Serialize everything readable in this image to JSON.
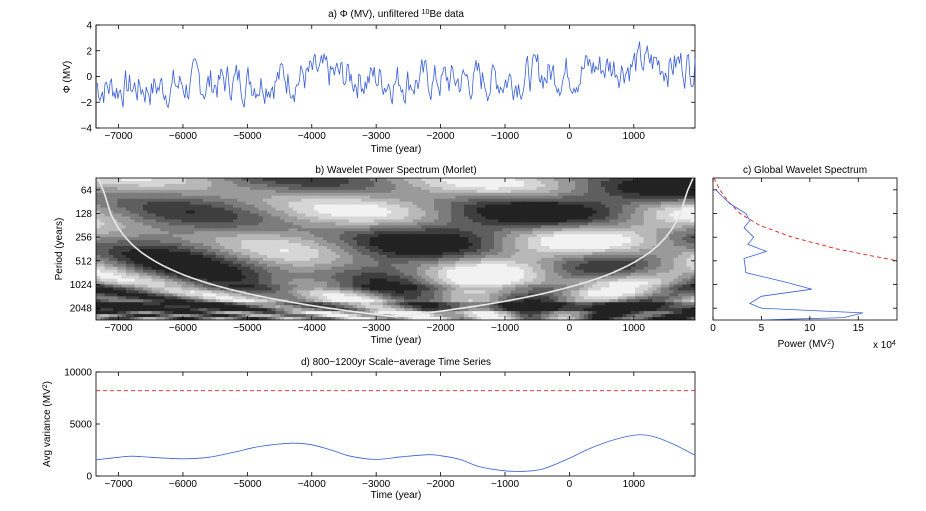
{
  "colors": {
    "series": "#3a5fd6",
    "significance": "#d62020",
    "axis": "#000000",
    "coi": "#e8e8e8"
  },
  "chart_data": [
    {
      "id": "a",
      "type": "line",
      "title_prefix": "a) Φ (MV), unfiltered ",
      "title_sup": "10",
      "title_suffix": "Be data",
      "xlabel": "Time (year)",
      "ylabel": "Φ (MV)",
      "xlim": [
        -7350,
        1950
      ],
      "ylim": [
        -4,
        4
      ],
      "xticks": [
        -7000,
        -6000,
        -5000,
        -4000,
        -3000,
        -2000,
        -1000,
        0,
        1000
      ],
      "yticks": [
        -4,
        -2,
        0,
        2,
        4
      ],
      "sample_step_years": 20,
      "grid": false
    },
    {
      "id": "b",
      "type": "heatmap",
      "title": "b) Wavelet Power Spectrum (Morlet)",
      "xlabel": "Time (year)",
      "ylabel": "Period (years)",
      "xlim": [
        -7350,
        1950
      ],
      "ylim_log2": [
        5.5,
        11.5
      ],
      "xticks": [
        -7000,
        -6000,
        -5000,
        -4000,
        -3000,
        -2000,
        -1000,
        0,
        1000
      ],
      "yticks": [
        64,
        128,
        256,
        512,
        1024,
        2048
      ],
      "grayscale_levels": 7,
      "cone_of_influence": true
    },
    {
      "id": "c",
      "type": "line",
      "title": "c) Global Wavelet Spectrum",
      "xlabel_main": "Power (MV",
      "xlabel_sup": "2",
      "xlabel_end": ")",
      "xscale_base": "x 10",
      "xscale_exp": "4",
      "xlim": [
        0,
        19
      ],
      "xticks": [
        0,
        5,
        10,
        15
      ],
      "period_log2": [
        6.0,
        6.3,
        6.6,
        7.0,
        7.3,
        7.6,
        8.0,
        8.3,
        8.6,
        8.9,
        9.2,
        9.5,
        9.9,
        10.2,
        10.5,
        10.8,
        11.0,
        11.2,
        11.4,
        11.5
      ],
      "power": [
        0.3,
        1.0,
        1.8,
        3.4,
        3.8,
        3.2,
        4.2,
        3.6,
        5.5,
        3.2,
        3.3,
        3.4,
        7.5,
        10.2,
        5.0,
        3.8,
        5.0,
        15.5,
        13.5,
        4.8
      ],
      "significance_log2": [
        5.5,
        6.0,
        6.5,
        7.0,
        7.5,
        8.0,
        8.5,
        9.0
      ],
      "significance_power": [
        0.1,
        0.7,
        1.6,
        2.8,
        4.8,
        8.2,
        12.8,
        19.0
      ]
    },
    {
      "id": "d",
      "type": "line",
      "title": "d) 800−1200yr Scale−average Time Series",
      "xlabel": "Time (year)",
      "ylabel_main": "Avg variance (MV",
      "ylabel_sup": "2",
      "ylabel_end": ")",
      "xlim": [
        -7350,
        1950
      ],
      "ylim": [
        0,
        10000
      ],
      "xticks": [
        -7000,
        -6000,
        -5000,
        -4000,
        -3000,
        -2000,
        -1000,
        0,
        1000
      ],
      "yticks": [
        0,
        5000,
        10000
      ],
      "x": [
        -7350,
        -7000,
        -6800,
        -6500,
        -6000,
        -5600,
        -5200,
        -4800,
        -4300,
        -4000,
        -3700,
        -3400,
        -3000,
        -2600,
        -2200,
        -2000,
        -1700,
        -1400,
        -1000,
        -700,
        -400,
        0,
        300,
        700,
        1050,
        1300,
        1600,
        1950
      ],
      "y": [
        1550,
        1800,
        1900,
        1800,
        1650,
        1800,
        2300,
        2850,
        3150,
        3000,
        2500,
        1900,
        1600,
        1850,
        2050,
        1950,
        1600,
        900,
        500,
        450,
        700,
        1700,
        2600,
        3500,
        3950,
        3800,
        3100,
        2000
      ],
      "significance_level": 8200
    }
  ]
}
